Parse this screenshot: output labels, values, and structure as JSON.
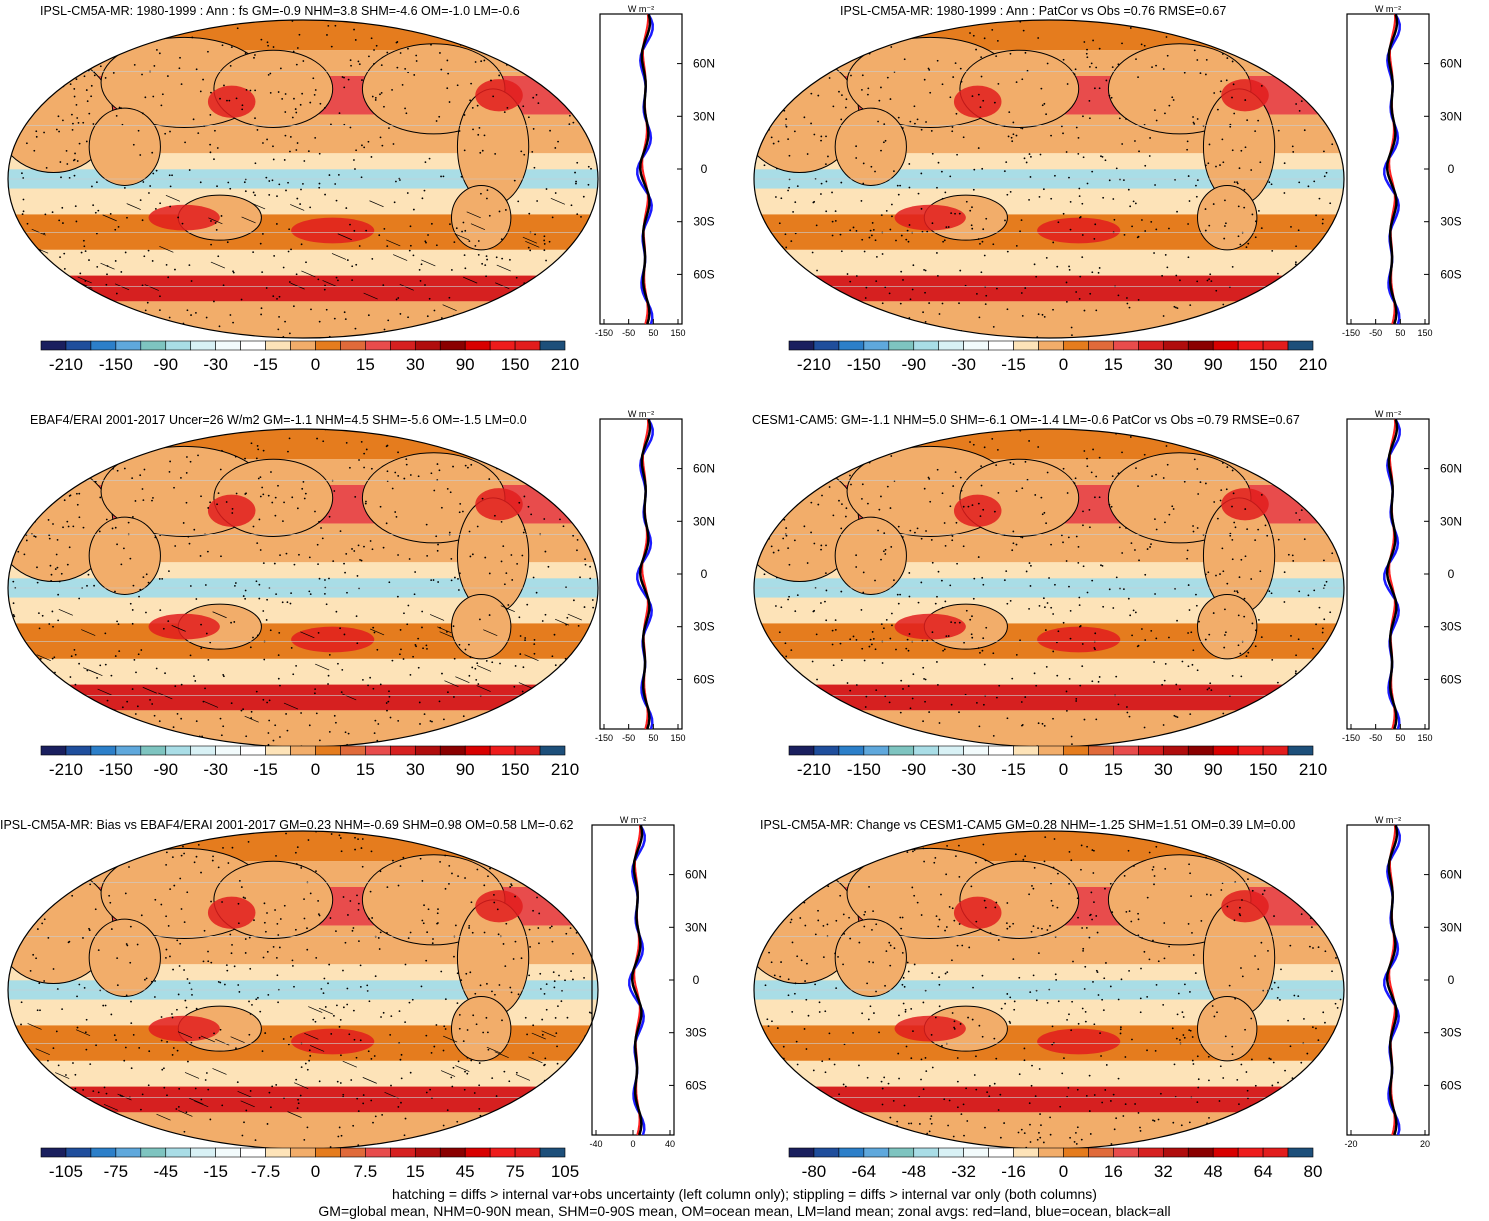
{
  "panels": [
    {
      "title": "IPSL-CM5A-MR: 1980-1999 : Ann : fs GM=-0.9 NHM=3.8 SHM=-4.6 OM=-1.0 LM=-0.6",
      "unit_label": "W m⁻²",
      "lat_labels": [
        "60N",
        "30N",
        "0",
        "30S",
        "60S"
      ],
      "zonal_ticks": [
        "-150",
        "-50",
        "50",
        "150"
      ],
      "colorbar_labels": [
        "-210",
        "-150",
        "-90",
        "-30",
        "-15",
        "0",
        "15",
        "30",
        "90",
        "150",
        "210"
      ],
      "hatched": true
    },
    {
      "title": "IPSL-CM5A-MR: 1980-1999 : Ann : PatCor vs Obs =0.76 RMSE=0.67",
      "unit_label": "W m⁻²",
      "lat_labels": [
        "60N",
        "30N",
        "0",
        "30S",
        "60S"
      ],
      "zonal_ticks": [
        "-150",
        "-50",
        "50",
        "150"
      ],
      "colorbar_labels": [
        "-210",
        "-150",
        "-90",
        "-30",
        "-15",
        "0",
        "15",
        "30",
        "90",
        "150",
        "210"
      ],
      "hatched": false
    },
    {
      "title": "EBAF4/ERAI 2001-2017 Uncer=26 W/m2 GM=-1.1 NHM=4.5 SHM=-5.6 OM=-1.5 LM=0.0",
      "unit_label": "W m⁻²",
      "lat_labels": [
        "60N",
        "30N",
        "0",
        "30S",
        "60S"
      ],
      "zonal_ticks": [
        "-150",
        "-50",
        "50",
        "150"
      ],
      "colorbar_labels": [
        "-210",
        "-150",
        "-90",
        "-30",
        "-15",
        "0",
        "15",
        "30",
        "90",
        "150",
        "210"
      ],
      "hatched": true
    },
    {
      "title": "CESM1-CAM5: GM=-1.1 NHM=5.0 SHM=-6.1 OM=-1.4 LM=-0.6 PatCor vs Obs =0.79 RMSE=0.67",
      "unit_label": "W m⁻²",
      "lat_labels": [
        "60N",
        "30N",
        "0",
        "30S",
        "60S"
      ],
      "zonal_ticks": [
        "-150",
        "-50",
        "50",
        "150"
      ],
      "colorbar_labels": [
        "-210",
        "-150",
        "-90",
        "-30",
        "-15",
        "0",
        "15",
        "30",
        "90",
        "150",
        "210"
      ],
      "hatched": false
    },
    {
      "title": "IPSL-CM5A-MR: Bias vs EBAF4/ERAI 2001-2017 GM=0.23 NHM=-0.69 SHM=0.98 OM=0.58 LM=-0.62",
      "unit_label": "W m⁻²",
      "lat_labels": [
        "60N",
        "30N",
        "0",
        "30S",
        "60S"
      ],
      "zonal_ticks": [
        "-40",
        "0",
        "40"
      ],
      "colorbar_labels": [
        "-105",
        "-75",
        "-45",
        "-15",
        "-7.5",
        "0",
        "7.5",
        "15",
        "45",
        "75",
        "105"
      ],
      "hatched": true
    },
    {
      "title": "IPSL-CM5A-MR: Change vs CESM1-CAM5 GM=0.28 NHM=-1.25 SHM=1.51 OM=0.39 LM=0.00",
      "unit_label": "W m⁻²",
      "lat_labels": [
        "60N",
        "30N",
        "0",
        "30S",
        "60S"
      ],
      "zonal_ticks": [
        "-20",
        "20"
      ],
      "colorbar_labels": [
        "-80",
        "-64",
        "-48",
        "-32",
        "-16",
        "0",
        "16",
        "32",
        "48",
        "64",
        "80"
      ],
      "hatched": false
    }
  ],
  "footer": {
    "line1": "hatching = diffs > internal var+obs uncertainty (left column only); stippling = diffs > internal var only (both columns)",
    "line2": "GM=global mean, NHM=0-90N mean, SHM=0-90S mean, OM=ocean mean, LM=land mean; zonal avgs: red=land, blue=ocean, black=all"
  },
  "colors": {
    "palette": [
      "#1a1f5e",
      "#1f4e9c",
      "#2c7fc9",
      "#5fa8dc",
      "#7ec4c0",
      "#a9dde6",
      "#d8f1f5",
      "#f2fbfc",
      "#ffffff",
      "#fde3b8",
      "#f2ad6a",
      "#e57c1e",
      "#e06a3a",
      "#e84c4c",
      "#d62020",
      "#b00d0d",
      "#8a0000",
      "#d80000",
      "#ee1c1c",
      "#e21d1d",
      "#1d4f7a"
    ],
    "land_line": "#000000",
    "zonal_land": "#ff2020",
    "zonal_ocean": "#1a1aff",
    "zonal_all": "#000000"
  }
}
